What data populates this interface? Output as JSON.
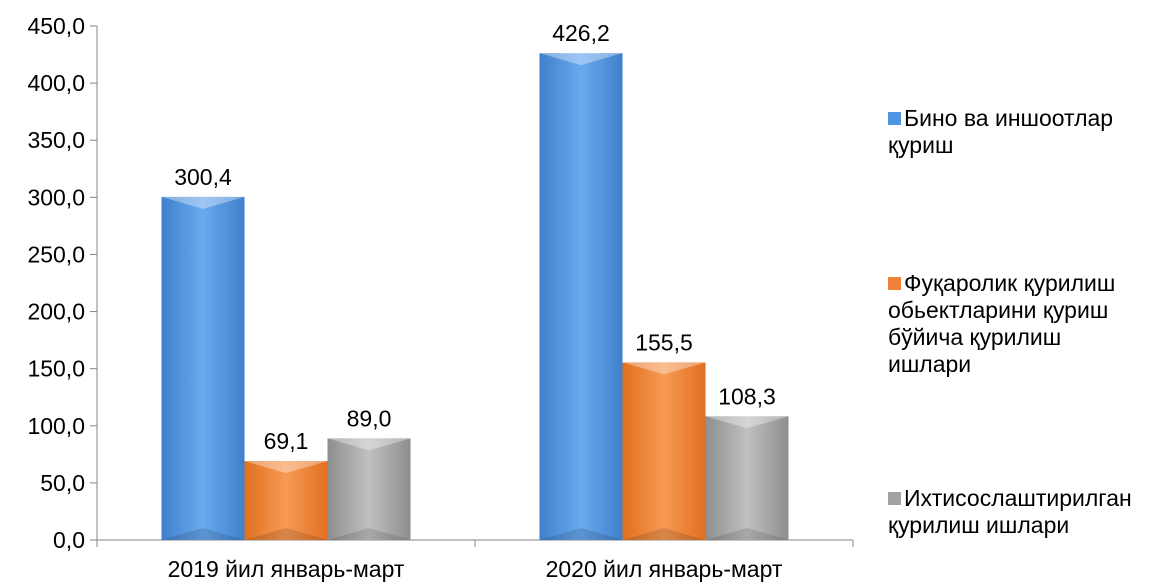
{
  "chart_data": {
    "type": "bar",
    "title": "",
    "xlabel": "",
    "ylabel": "",
    "categories": [
      "2019 йил январь-март",
      "2020 йил январь-март"
    ],
    "ylim": [
      0,
      450
    ],
    "yticks": [
      "0,0",
      "50,0",
      "100,0",
      "150,0",
      "200,0",
      "250,0",
      "300,0",
      "350,0",
      "400,0",
      "450,0"
    ],
    "grid": false,
    "legend_position": "right",
    "series": [
      {
        "name": "Бино ва иншоотлар қуриш",
        "values": [
          300.4,
          426.2
        ],
        "labels": [
          "300,4",
          "426,2"
        ],
        "color": "#4F94E0"
      },
      {
        "name": "Фуқаролик қурилиш обьектларини қуриш бўйича қурилиш ишлари",
        "values": [
          69.1,
          155.5
        ],
        "labels": [
          "69,1",
          "155,5"
        ],
        "color": "#F0813A"
      },
      {
        "name": "Ихтисослаштирилган қурилиш ишлари",
        "values": [
          89.0,
          108.3
        ],
        "labels": [
          "89,0",
          "108,3"
        ],
        "color": "#A3A3A3"
      }
    ]
  }
}
